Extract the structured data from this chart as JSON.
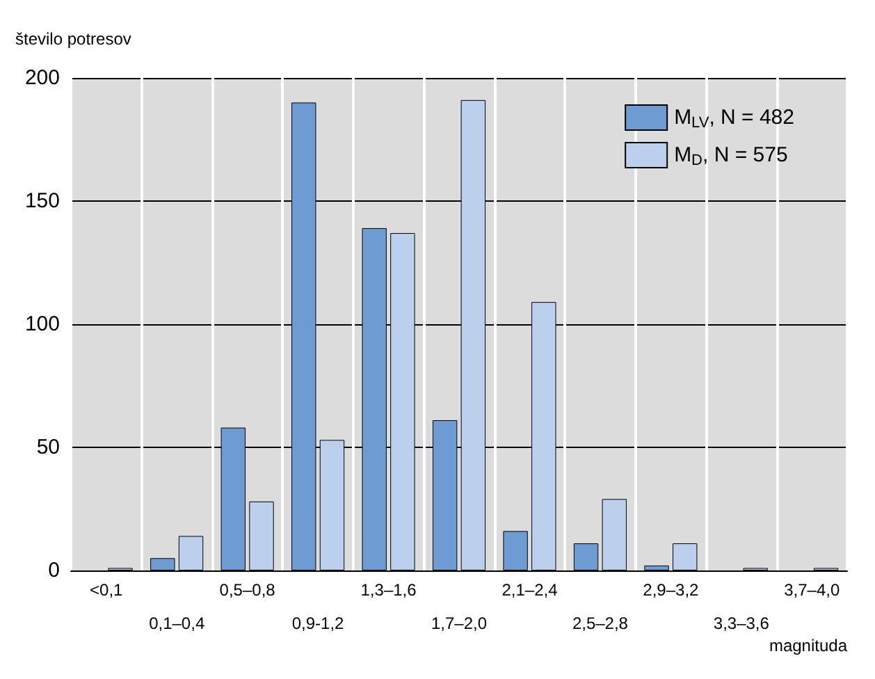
{
  "chart_data": {
    "type": "bar",
    "xlabel": "magnituda",
    "ylabel": "število potresov",
    "categories": [
      "<0,1",
      "0,1–0,4",
      "0,5–0,8",
      "0,9-1,2",
      "1,3–1,6",
      "1,7–2,0",
      "2,1–2,4",
      "2,5–2,8",
      "2,9–3,2",
      "3,3–3,6",
      "3,7–4,0"
    ],
    "series": [
      {
        "name": "M$_{LV}$, N = 482",
        "color": "#6f9bd3",
        "values": [
          0,
          5,
          58,
          190,
          139,
          61,
          16,
          11,
          2,
          0,
          0
        ]
      },
      {
        "name": "M$_{D}$, N = 575",
        "color": "#bcd0ee",
        "values": [
          1,
          14,
          28,
          53,
          137,
          191,
          109,
          29,
          11,
          1,
          1
        ]
      }
    ],
    "ylim": [
      0,
      200
    ],
    "yticks": [
      0,
      50,
      100,
      150,
      200
    ],
    "grid": true,
    "legend": "top right"
  }
}
